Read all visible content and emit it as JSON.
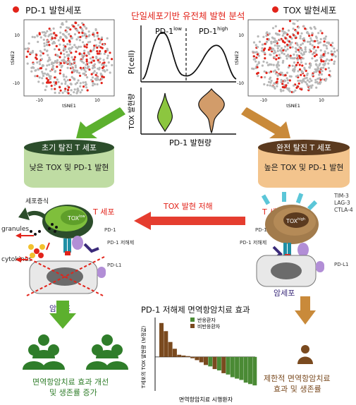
{
  "top": {
    "title": "단일세포기반 유전체 발현 분석",
    "left_panel": {
      "title": "PD-1 발현세포",
      "xlabel": "tSNE1",
      "ylabel": "tSNE2",
      "xticks": [
        "-10",
        "10"
      ],
      "yticks": [
        "10",
        "-10"
      ]
    },
    "right_panel": {
      "title": "TOX 발현세포",
      "xlabel": "tSNE1",
      "ylabel": "tSNE2",
      "xticks": [
        "-10",
        "10"
      ],
      "yticks": [
        "10",
        "-10"
      ]
    },
    "density": {
      "ylabel": "P(cell)",
      "low_label": "PD-1",
      "low_sup": "low",
      "high_label": "PD-1",
      "high_sup": "high"
    },
    "violin": {
      "ylabel_main": "TOX 발현량",
      "xlabel": "PD-1 발현량"
    }
  },
  "left_state": {
    "header": "초기 탈진 T 세포",
    "body": "낮은 TOX 및 PD-1 발현"
  },
  "right_state": {
    "header": "완전 탈진 T 세포",
    "body": "높은 TOX 및 PD-1 발현"
  },
  "middle": {
    "arrow_label": "TOX 발현 저해"
  },
  "left_cell": {
    "t_label": "T 세포",
    "tox": "TOX",
    "tox_sup": "low",
    "prolif": "세포증식",
    "granules": "granules",
    "cytokines": "cytokines",
    "pd1": "PD-1",
    "inhibitor": "PD-1 저해제",
    "pdl1": "PD-L1",
    "tumor": "암세포"
  },
  "right_cell": {
    "t_label": "T 세포",
    "tox": "TOX",
    "tox_sup": "high",
    "receptors": [
      "TIM-3",
      "LAG-3",
      "CTLA-4"
    ],
    "pd1": "PD-1",
    "inhibitor": "PD-1 저해제",
    "pdl1": "PD-L1",
    "tumor": "암세포"
  },
  "bottom": {
    "title": "PD-1 저해제 면역항암치료 효과",
    "left_outcome": [
      "면역항암치료 효과 개선",
      "및 생존률 증가"
    ],
    "right_outcome": [
      "제한적 면역항암치료",
      "효과 및 생존률"
    ]
  },
  "chart_data": {
    "type": "bar",
    "title": "PD-1 저해제 면역항암치료 효과",
    "xlabel": "면역항암치료 시행환자",
    "ylabel": "T세포의 TOX 발현량 (보정값)",
    "legend": [
      "반응환자",
      "비반응환자"
    ],
    "legend_placement": "top-right",
    "series": [
      {
        "name": "반응환자",
        "color": "#4a8a34",
        "indices": [
          11,
          13,
          15,
          16,
          17,
          18,
          19,
          20,
          21
        ]
      },
      {
        "name": "비반응환자",
        "color": "#7a4a1f",
        "indices": [
          0,
          1,
          2,
          3,
          4,
          5,
          6,
          7,
          8,
          9,
          10,
          12,
          14
        ]
      }
    ],
    "values": [
      1.25,
      0.95,
      0.55,
      0.3,
      0.08,
      0.05,
      0.03,
      -0.05,
      -0.12,
      -0.2,
      -0.3,
      -0.35,
      -0.45,
      -0.5,
      -0.6,
      -0.65,
      -0.75,
      -0.8,
      -0.85,
      -0.95,
      -1.0,
      -1.05
    ],
    "ylim": [
      -1.2,
      1.4
    ]
  },
  "colors": {
    "green": "#5cb02e",
    "dark_green": "#2c4d2b",
    "brown": "#c98a3a",
    "dark_brown": "#5b3a1f",
    "red": "#e2231a"
  }
}
